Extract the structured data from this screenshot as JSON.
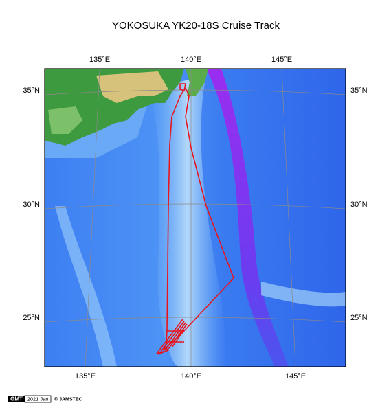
{
  "title": "YOKOSUKA YK20-18S Cruise Track",
  "map": {
    "lon_labels_top": [
      "135°E",
      "140°E",
      "145°E"
    ],
    "lon_labels_bottom": [
      "135°E",
      "140°E",
      "145°E"
    ],
    "lat_labels_left": [
      "35°N",
      "30°N",
      "25°N"
    ],
    "lat_labels_right": [
      "35°N",
      "30°N",
      "25°N"
    ]
  },
  "footer": {
    "logo": "GMT",
    "date": "2021 Jan",
    "credit": "© JAMSTEC"
  }
}
